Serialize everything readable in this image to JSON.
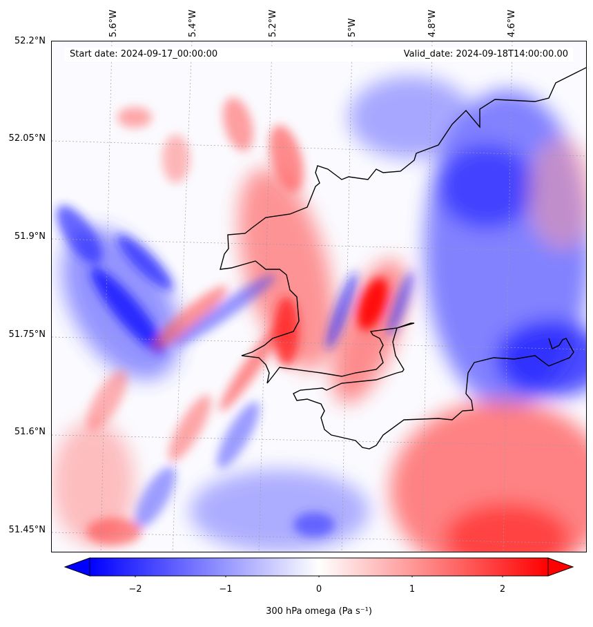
{
  "map": {
    "start_date": "Start date: 2024-09-17_00:00:00",
    "valid_date": "Valid_date: 2024-09-18T14:00:00.00",
    "lon_labels": [
      "5.6°W",
      "5.4°W",
      "5.2°W",
      "5°W",
      "4.8°W",
      "4.6°W"
    ],
    "lat_labels": [
      "52.2°N",
      "52.05°N",
      "51.9°N",
      "51.75°N",
      "51.6°N",
      "51.45°N"
    ],
    "field": "300 hPa omega",
    "colors": {
      "negative": "#0000ff",
      "zero": "#ffffff",
      "positive": "#ff0000",
      "coastline": "#000000"
    },
    "gridlines": true
  },
  "colorbar": {
    "label": "300 hPa omega (Pa s⁻¹)",
    "ticks": [
      "−2",
      "−1",
      "0",
      "1",
      "2"
    ],
    "range": [
      -2.7,
      2.7
    ],
    "extend": "both"
  }
}
